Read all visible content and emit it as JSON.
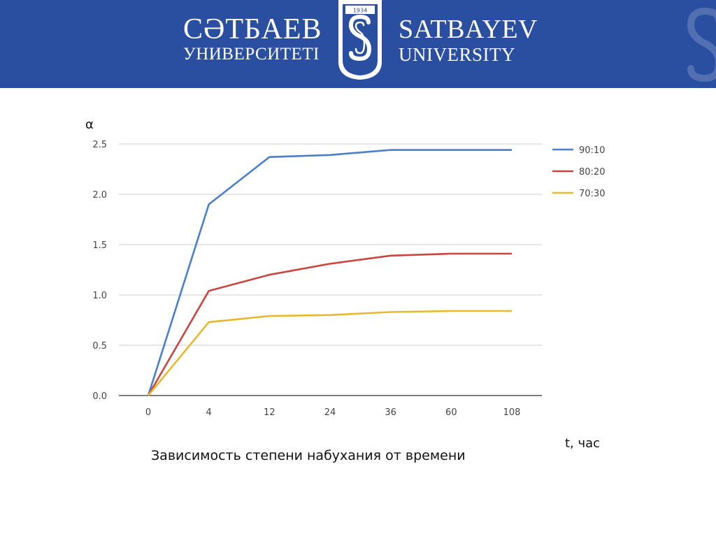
{
  "header": {
    "left_line1": "СӘТБАЕВ",
    "left_line2": "УНИВЕРСИТЕТІ",
    "right_line1": "SATBAYEV",
    "right_line2": "UNIVERSITY",
    "emblem_year": "1934",
    "emblem_icon": "satbayev-s-emblem",
    "background_color": "#2b4fa0"
  },
  "caption": "Зависимость степени набухания от времени",
  "chart_data": {
    "type": "line",
    "ylabel": "α",
    "xlabel": "t, час",
    "categories": [
      "0",
      "4",
      "12",
      "24",
      "36",
      "60",
      "108"
    ],
    "yticks": [
      "0.0",
      "0.5",
      "1.0",
      "1.5",
      "2.0",
      "2.5"
    ],
    "ylim": [
      0,
      2.5
    ],
    "grid": true,
    "legend_position": "right",
    "series": [
      {
        "name": "90:10",
        "color": "#4a7fc9",
        "values": [
          0,
          1.9,
          2.37,
          2.39,
          2.44,
          2.44,
          2.44
        ]
      },
      {
        "name": "80:20",
        "color": "#c9453f",
        "values": [
          0,
          1.04,
          1.2,
          1.31,
          1.39,
          1.41,
          1.41
        ]
      },
      {
        "name": "70:30",
        "color": "#e8b92e",
        "values": [
          0,
          0.73,
          0.79,
          0.8,
          0.83,
          0.84,
          0.84
        ]
      }
    ]
  }
}
